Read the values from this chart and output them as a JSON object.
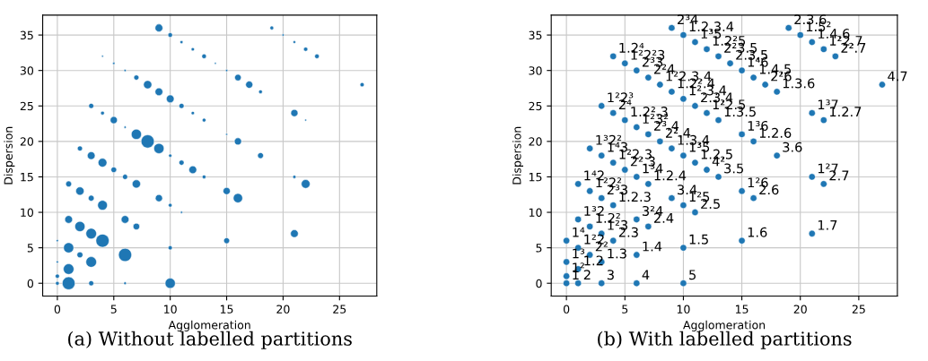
{
  "chart_data": [
    {
      "type": "bubble",
      "xlabel": "Agglomeration",
      "ylabel": "Dispersion",
      "xlim": [
        -1.3,
        28.3
      ],
      "ylim": [
        -1.8,
        37.8
      ],
      "xticks": [
        0,
        5,
        10,
        15,
        20,
        25
      ],
      "yticks": [
        0,
        5,
        10,
        15,
        20,
        25,
        30,
        35
      ],
      "grid": true,
      "marker": "circle",
      "color": "#1f77b4",
      "x": [
        9,
        19,
        10,
        20,
        11,
        21,
        12,
        22,
        4,
        13,
        23,
        5,
        14,
        6,
        15,
        7,
        16,
        8,
        17,
        27,
        9,
        18,
        10,
        3,
        11,
        4,
        12,
        21,
        5,
        13,
        22,
        6,
        7,
        15,
        8,
        16,
        2,
        9,
        3,
        10,
        18,
        4,
        11,
        5,
        12,
        6,
        13,
        21,
        1,
        7,
        22,
        2,
        15,
        3,
        9,
        16,
        4,
        10,
        11,
        1,
        6,
        2,
        7,
        3,
        21,
        0,
        4,
        15,
        1,
        10,
        2,
        6,
        0,
        3,
        1,
        0,
        0,
        1,
        3,
        6,
        10
      ],
      "values": [
        36,
        36,
        35,
        35,
        34,
        34,
        33,
        33,
        32,
        32,
        32,
        31,
        31,
        30,
        30,
        29,
        29,
        28,
        28,
        28,
        27,
        27,
        26,
        25,
        25,
        24,
        24,
        24,
        23,
        23,
        23,
        22,
        21,
        21,
        20,
        20,
        19,
        19,
        18,
        18,
        18,
        17,
        17,
        16,
        16,
        15,
        15,
        15,
        14,
        14,
        14,
        13,
        13,
        12,
        12,
        12,
        11,
        11,
        10,
        9,
        9,
        8,
        8,
        7,
        7,
        6,
        6,
        6,
        5,
        5,
        4,
        4,
        3,
        3,
        2,
        1,
        0,
        0,
        0,
        0,
        0
      ],
      "sizes": [
        0.35,
        0.08,
        0.12,
        0.03,
        0.05,
        0.04,
        0.06,
        0.1,
        0.02,
        0.12,
        0.12,
        0.03,
        0.02,
        0.03,
        0.03,
        0.15,
        0.25,
        0.4,
        0.3,
        0.1,
        0.35,
        0.08,
        0.35,
        0.15,
        0.15,
        0.08,
        0.06,
        0.3,
        0.3,
        0.08,
        0.02,
        0.03,
        0.6,
        0.02,
        1,
        0.3,
        0.15,
        0.6,
        0.35,
        0.06,
        0.2,
        0.45,
        0.15,
        0.18,
        0.35,
        0.15,
        0.08,
        0.06,
        0.2,
        0.4,
        0.45,
        0.4,
        0.3,
        0.2,
        0.3,
        0.5,
        0.55,
        0.08,
        0.03,
        0.35,
        0.35,
        0.6,
        0.25,
        0.65,
        0.35,
        0.03,
        1,
        0.2,
        0.6,
        0.1,
        0.2,
        1,
        0.03,
        0.65,
        0.65,
        0.1,
        0.08,
        0.95,
        0.15,
        0.04,
        0.6
      ],
      "annotations": [
        "(a) Without labelled partitions"
      ]
    },
    {
      "type": "scatter",
      "xlabel": "Agglomeration",
      "ylabel": "Dispersion",
      "xlim": [
        -1.3,
        28.3
      ],
      "ylim": [
        -1.8,
        37.8
      ],
      "xticks": [
        0,
        5,
        10,
        15,
        20,
        25
      ],
      "yticks": [
        0,
        5,
        10,
        15,
        20,
        25,
        30,
        35
      ],
      "grid": true,
      "marker": "circle",
      "color": "#1f77b4",
      "x": [
        9,
        19,
        10,
        20,
        11,
        21,
        12,
        22,
        4,
        13,
        23,
        5,
        14,
        6,
        15,
        7,
        16,
        8,
        17,
        27,
        9,
        18,
        10,
        3,
        11,
        4,
        12,
        21,
        5,
        13,
        22,
        6,
        7,
        15,
        8,
        16,
        2,
        9,
        3,
        10,
        18,
        4,
        11,
        5,
        12,
        6,
        13,
        21,
        1,
        7,
        22,
        2,
        15,
        3,
        9,
        16,
        4,
        10,
        11,
        1,
        6,
        2,
        7,
        3,
        21,
        0,
        4,
        15,
        1,
        10,
        2,
        6,
        0,
        3,
        1,
        0,
        0,
        1,
        3,
        6,
        10
      ],
      "values": [
        36,
        36,
        35,
        35,
        34,
        34,
        33,
        33,
        32,
        32,
        32,
        31,
        31,
        30,
        30,
        29,
        29,
        28,
        28,
        28,
        27,
        27,
        26,
        25,
        25,
        24,
        24,
        24,
        23,
        23,
        23,
        22,
        21,
        21,
        20,
        20,
        19,
        19,
        18,
        18,
        18,
        17,
        17,
        16,
        16,
        15,
        15,
        15,
        14,
        14,
        14,
        13,
        13,
        12,
        12,
        12,
        11,
        11,
        10,
        9,
        9,
        8,
        8,
        7,
        7,
        6,
        6,
        6,
        5,
        5,
        4,
        4,
        3,
        3,
        2,
        1,
        0,
        0,
        0,
        0,
        0
      ],
      "annotations": [
        {
          "text": "2³4",
          "x": 9,
          "y": 36
        },
        {
          "text": "2.3.6",
          "x": 19,
          "y": 36
        },
        {
          "text": "1.2.3.4",
          "x": 10,
          "y": 35
        },
        {
          "text": "1.5²",
          "x": 20,
          "y": 35
        },
        {
          "text": "1³5",
          "x": 11,
          "y": 34
        },
        {
          "text": "1.4.6",
          "x": 21,
          "y": 34
        },
        {
          "text": "1.2²5",
          "x": 12,
          "y": 33
        },
        {
          "text": "1²2.7",
          "x": 22,
          "y": 33
        },
        {
          "text": "1.2⁴",
          "x": 4,
          "y": 32
        },
        {
          "text": "2²3.5",
          "x": 13,
          "y": 32
        },
        {
          "text": "2².7",
          "x": 23,
          "y": 32
        },
        {
          "text": "1²2²3",
          "x": 5,
          "y": 31
        },
        {
          "text": "2.3.5",
          "x": 14,
          "y": 31
        },
        {
          "text": "2³3",
          "x": 6,
          "y": 30
        },
        {
          "text": "1⁴6",
          "x": 15,
          "y": 30
        },
        {
          "text": "2²4",
          "x": 7,
          "y": 29
        },
        {
          "text": "1.4.5",
          "x": 16,
          "y": 29
        },
        {
          "text": "1²2.3.4",
          "x": 8,
          "y": 28
        },
        {
          "text": "2²6",
          "x": 17,
          "y": 28
        },
        {
          "text": "4.7",
          "x": 27,
          "y": 28
        },
        {
          "text": "1.2².4",
          "x": 9,
          "y": 27
        },
        {
          "text": "1.3.6",
          "x": 18,
          "y": 27
        },
        {
          "text": "1².3.4",
          "x": 10,
          "y": 26
        },
        {
          "text": "1²2³",
          "x": 3,
          "y": 25
        },
        {
          "text": "2.3.4",
          "x": 11,
          "y": 25
        },
        {
          "text": "2⁴",
          "x": 4,
          "y": 24
        },
        {
          "text": "1²2.5",
          "x": 12,
          "y": 24
        },
        {
          "text": "1³7",
          "x": 21,
          "y": 24
        },
        {
          "text": "1.2².3",
          "x": 5,
          "y": 23
        },
        {
          "text": "1.3.5",
          "x": 13,
          "y": 23
        },
        {
          "text": "1.2.7",
          "x": 22,
          "y": 23
        },
        {
          "text": "1²3²",
          "x": 6,
          "y": 22
        },
        {
          "text": "2³.4",
          "x": 7,
          "y": 21
        },
        {
          "text": "1³6",
          "x": 15,
          "y": 21
        },
        {
          "text": "2².4",
          "x": 8,
          "y": 20
        },
        {
          "text": "1.2.6",
          "x": 16,
          "y": 20
        },
        {
          "text": "1³2²",
          "x": 2,
          "y": 19
        },
        {
          "text": "1.3.4",
          "x": 9,
          "y": 19
        },
        {
          "text": "1⁴3",
          "x": 3,
          "y": 18
        },
        {
          "text": "1³5",
          "x": 10,
          "y": 18
        },
        {
          "text": "3.6",
          "x": 18,
          "y": 18
        },
        {
          "text": "1²2.3",
          "x": 4,
          "y": 17
        },
        {
          "text": "1.2.5",
          "x": 11,
          "y": 17
        },
        {
          "text": "2².3",
          "x": 5,
          "y": 16
        },
        {
          "text": "4²",
          "x": 12,
          "y": 16
        },
        {
          "text": "1³4",
          "x": 6,
          "y": 15
        },
        {
          "text": "3.5",
          "x": 13,
          "y": 15
        },
        {
          "text": "1²7",
          "x": 21,
          "y": 15
        },
        {
          "text": "1⁴2",
          "x": 1,
          "y": 14
        },
        {
          "text": "1.2.4",
          "x": 7,
          "y": 14
        },
        {
          "text": "2.7",
          "x": 22,
          "y": 14
        },
        {
          "text": "1²2²",
          "x": 2,
          "y": 13
        },
        {
          "text": "1²6",
          "x": 15,
          "y": 13
        },
        {
          "text": "2³3",
          "x": 3,
          "y": 12
        },
        {
          "text": "3.4",
          "x": 9,
          "y": 12
        },
        {
          "text": "2.6",
          "x": 16,
          "y": 12
        },
        {
          "text": "1.2.3",
          "x": 4,
          "y": 11
        },
        {
          "text": "1²5",
          "x": 10,
          "y": 11
        },
        {
          "text": "2.5",
          "x": 11,
          "y": 10
        },
        {
          "text": "1³2",
          "x": 1,
          "y": 9
        },
        {
          "text": "3²4",
          "x": 6,
          "y": 9
        },
        {
          "text": "1.2²",
          "x": 2,
          "y": 8
        },
        {
          "text": "2.4",
          "x": 7,
          "y": 8
        },
        {
          "text": "1²3",
          "x": 3,
          "y": 7
        },
        {
          "text": "1.7",
          "x": 21,
          "y": 7
        },
        {
          "text": "1⁴",
          "x": 0,
          "y": 6
        },
        {
          "text": "2.3",
          "x": 4,
          "y": 6
        },
        {
          "text": "1.6",
          "x": 15,
          "y": 6
        },
        {
          "text": "1²2",
          "x": 1,
          "y": 5
        },
        {
          "text": "1.5",
          "x": 10,
          "y": 5
        },
        {
          "text": "2²",
          "x": 2,
          "y": 4
        },
        {
          "text": "1.4",
          "x": 6,
          "y": 4
        },
        {
          "text": "1³",
          "x": 0,
          "y": 3
        },
        {
          "text": "1.3",
          "x": 3,
          "y": 3
        },
        {
          "text": "1.2",
          "x": 1,
          "y": 2
        },
        {
          "text": "1²",
          "x": 0,
          "y": 1
        },
        {
          "text": "1",
          "x": 0,
          "y": 0
        },
        {
          "text": "2",
          "x": 1,
          "y": 0
        },
        {
          "text": "3",
          "x": 3,
          "y": 0
        },
        {
          "text": "4",
          "x": 6,
          "y": 0
        },
        {
          "text": "5",
          "x": 10,
          "y": 0
        },
        "(b) With labelled partitions"
      ]
    }
  ]
}
